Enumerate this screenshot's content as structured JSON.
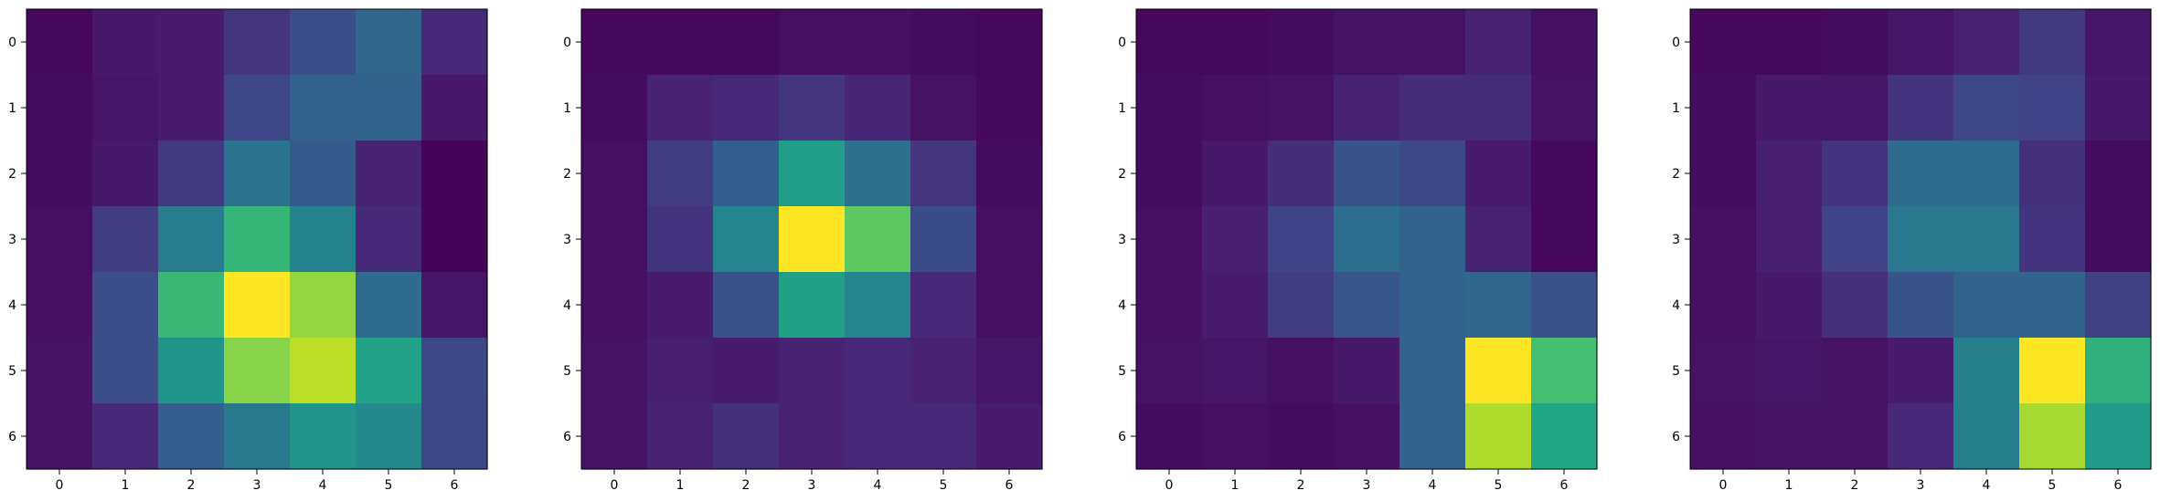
{
  "chart_data": [
    {
      "type": "heatmap",
      "colormap": "viridis",
      "x_ticks": [
        "0",
        "1",
        "2",
        "3",
        "4",
        "5",
        "6"
      ],
      "y_ticks": [
        "0",
        "1",
        "2",
        "3",
        "4",
        "5",
        "6"
      ],
      "vmin": 0,
      "vmax": 1,
      "values": [
        [
          0.02,
          0.07,
          0.08,
          0.16,
          0.24,
          0.33,
          0.12
        ],
        [
          0.03,
          0.06,
          0.08,
          0.22,
          0.31,
          0.32,
          0.07
        ],
        [
          0.03,
          0.07,
          0.17,
          0.38,
          0.29,
          0.1,
          0.01
        ],
        [
          0.04,
          0.18,
          0.42,
          0.66,
          0.44,
          0.12,
          0.01
        ],
        [
          0.04,
          0.24,
          0.67,
          1.0,
          0.84,
          0.35,
          0.06
        ],
        [
          0.05,
          0.24,
          0.52,
          0.82,
          0.9,
          0.58,
          0.22
        ],
        [
          0.05,
          0.12,
          0.3,
          0.4,
          0.52,
          0.47,
          0.21
        ]
      ]
    },
    {
      "type": "heatmap",
      "colormap": "viridis",
      "x_ticks": [
        "0",
        "1",
        "2",
        "3",
        "4",
        "5",
        "6"
      ],
      "y_ticks": [
        "0",
        "1",
        "2",
        "3",
        "4",
        "5",
        "6"
      ],
      "vmin": 0,
      "vmax": 1,
      "values": [
        [
          0.02,
          0.02,
          0.02,
          0.04,
          0.04,
          0.03,
          0.02
        ],
        [
          0.03,
          0.1,
          0.12,
          0.16,
          0.11,
          0.05,
          0.02
        ],
        [
          0.04,
          0.18,
          0.3,
          0.56,
          0.37,
          0.16,
          0.03
        ],
        [
          0.04,
          0.15,
          0.45,
          1.0,
          0.75,
          0.23,
          0.04
        ],
        [
          0.04,
          0.08,
          0.25,
          0.57,
          0.45,
          0.12,
          0.04
        ],
        [
          0.05,
          0.09,
          0.08,
          0.1,
          0.12,
          0.1,
          0.06
        ],
        [
          0.05,
          0.1,
          0.14,
          0.1,
          0.12,
          0.12,
          0.08
        ]
      ]
    },
    {
      "type": "heatmap",
      "colormap": "viridis",
      "x_ticks": [
        "0",
        "1",
        "2",
        "3",
        "4",
        "5",
        "6"
      ],
      "y_ticks": [
        "0",
        "1",
        "2",
        "3",
        "4",
        "5",
        "6"
      ],
      "vmin": 0,
      "vmax": 1,
      "values": [
        [
          0.02,
          0.02,
          0.03,
          0.05,
          0.05,
          0.1,
          0.04
        ],
        [
          0.03,
          0.04,
          0.05,
          0.1,
          0.13,
          0.13,
          0.05
        ],
        [
          0.03,
          0.07,
          0.13,
          0.26,
          0.22,
          0.08,
          0.02
        ],
        [
          0.04,
          0.09,
          0.2,
          0.36,
          0.32,
          0.1,
          0.02
        ],
        [
          0.04,
          0.08,
          0.18,
          0.27,
          0.32,
          0.33,
          0.25
        ],
        [
          0.05,
          0.06,
          0.04,
          0.07,
          0.32,
          1.0,
          0.7
        ],
        [
          0.03,
          0.04,
          0.03,
          0.04,
          0.32,
          0.88,
          0.6
        ]
      ]
    },
    {
      "type": "heatmap",
      "colormap": "viridis",
      "x_ticks": [
        "0",
        "1",
        "2",
        "3",
        "4",
        "5",
        "6"
      ],
      "y_ticks": [
        "0",
        "1",
        "2",
        "3",
        "4",
        "5",
        "6"
      ],
      "vmin": 0,
      "vmax": 1,
      "values": [
        [
          0.02,
          0.02,
          0.03,
          0.06,
          0.1,
          0.17,
          0.06
        ],
        [
          0.03,
          0.07,
          0.06,
          0.15,
          0.22,
          0.2,
          0.07
        ],
        [
          0.03,
          0.09,
          0.15,
          0.35,
          0.35,
          0.14,
          0.03
        ],
        [
          0.04,
          0.09,
          0.2,
          0.4,
          0.4,
          0.15,
          0.03
        ],
        [
          0.04,
          0.07,
          0.14,
          0.26,
          0.32,
          0.32,
          0.19
        ],
        [
          0.05,
          0.06,
          0.05,
          0.08,
          0.43,
          1.0,
          0.64
        ],
        [
          0.04,
          0.05,
          0.05,
          0.12,
          0.43,
          0.87,
          0.55
        ]
      ]
    }
  ]
}
